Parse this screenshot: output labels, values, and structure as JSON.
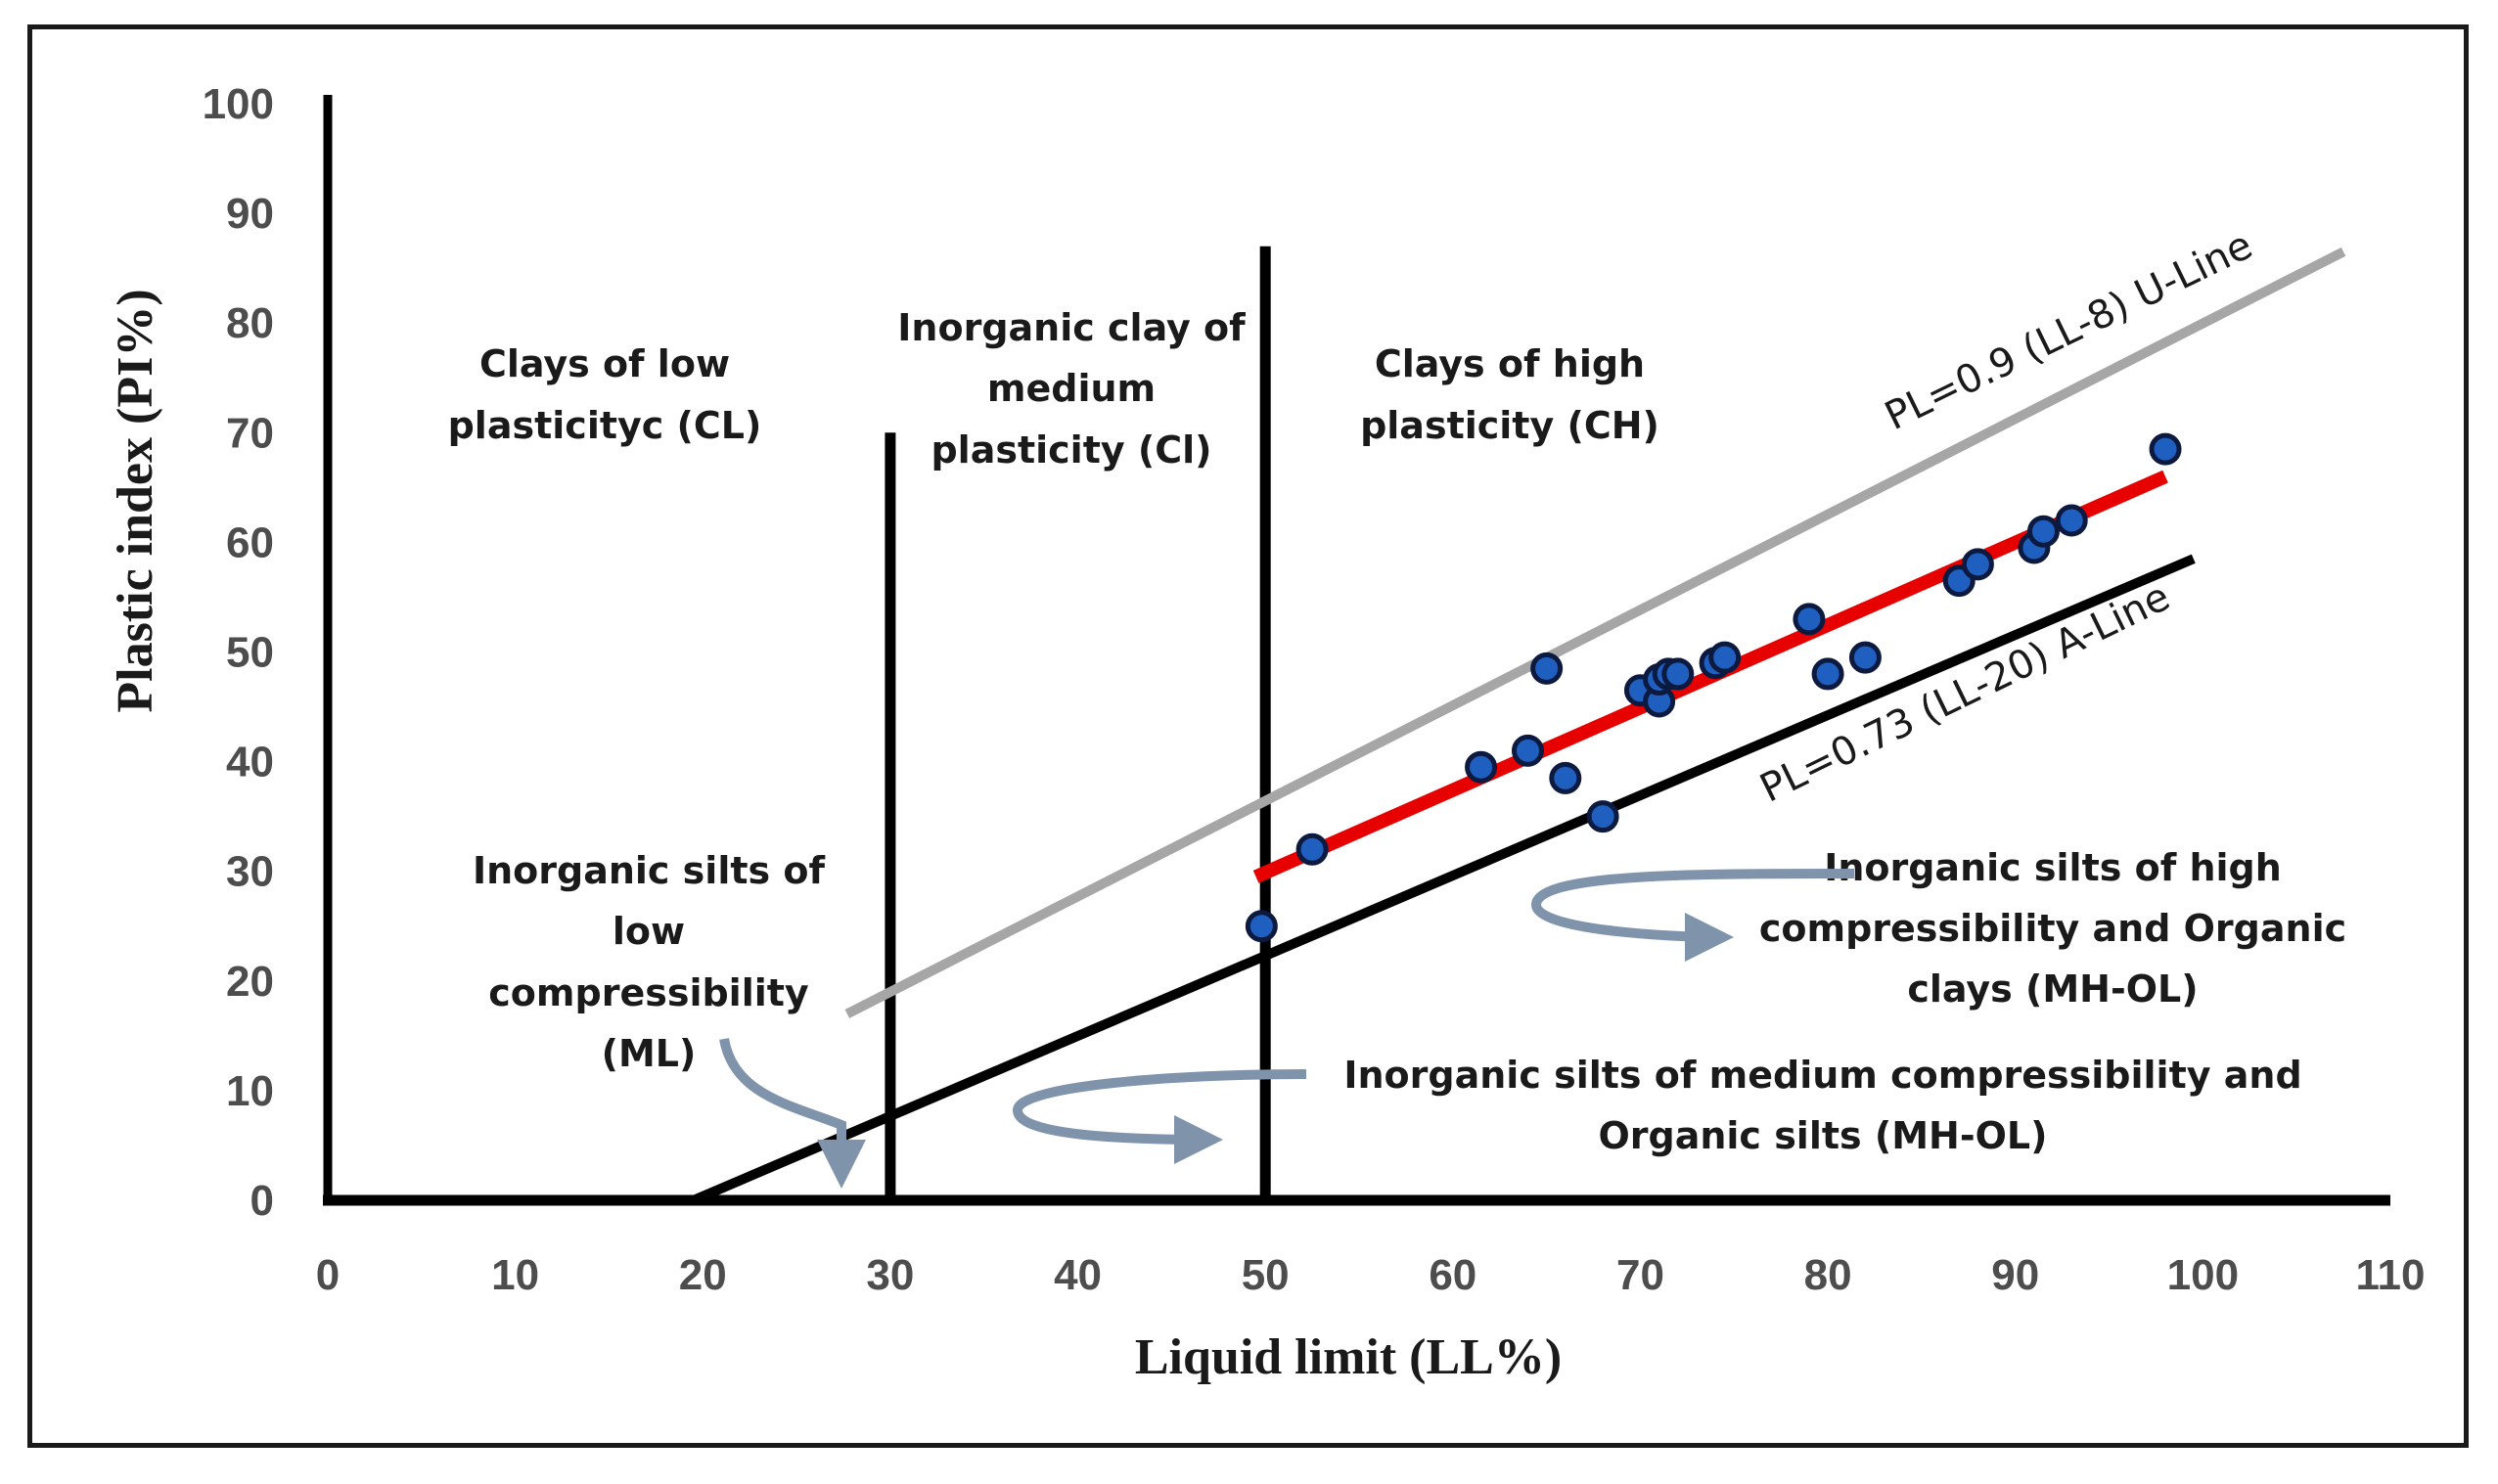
{
  "chart_data": {
    "type": "scatter",
    "title": "",
    "xlabel": "Liquid limit (LL%)",
    "ylabel": "Plastic index (PI%)",
    "xlim": [
      0,
      110
    ],
    "ylim": [
      0,
      100
    ],
    "x_ticks": [
      "0",
      "10",
      "20",
      "30",
      "40",
      "50",
      "60",
      "70",
      "80",
      "90",
      "100",
      "110"
    ],
    "y_ticks": [
      "0",
      "10",
      "20",
      "30",
      "40",
      "50",
      "60",
      "70",
      "80",
      "90",
      "100"
    ],
    "grid": false,
    "boundaries": [
      {
        "name": "LL=30",
        "x": 30,
        "y_range": [
          0,
          70
        ]
      },
      {
        "name": "LL=50",
        "x": 50,
        "y_range": [
          0,
          87
        ]
      }
    ],
    "lines": [
      {
        "name": "U-Line",
        "label": "PL=0.9 (LL-8) U-Line",
        "color": "#a6a6a6",
        "x": [
          27.7,
          107.5
        ],
        "y": [
          17,
          86.5
        ]
      },
      {
        "name": "A-Line",
        "label": "PL=0.73 (LL-20) A-Line",
        "color": "#000000",
        "x": [
          19.5,
          99.5
        ],
        "y": [
          0,
          58.5
        ]
      },
      {
        "name": "Trend",
        "label": "",
        "color": "#e60000",
        "x": [
          49.5,
          98
        ],
        "y": [
          29.5,
          66
        ]
      }
    ],
    "series": [
      {
        "name": "Samples",
        "color": "#1f5fbf",
        "points": [
          {
            "x": 49.8,
            "y": 25
          },
          {
            "x": 52.5,
            "y": 32
          },
          {
            "x": 61.5,
            "y": 39.5
          },
          {
            "x": 64,
            "y": 41
          },
          {
            "x": 65,
            "y": 48.5
          },
          {
            "x": 66,
            "y": 38.5
          },
          {
            "x": 68,
            "y": 35
          },
          {
            "x": 70,
            "y": 46.5
          },
          {
            "x": 71,
            "y": 45.5
          },
          {
            "x": 71,
            "y": 47.5
          },
          {
            "x": 71.5,
            "y": 48
          },
          {
            "x": 72,
            "y": 48
          },
          {
            "x": 74,
            "y": 49
          },
          {
            "x": 74.5,
            "y": 49.5
          },
          {
            "x": 79,
            "y": 53
          },
          {
            "x": 80,
            "y": 48
          },
          {
            "x": 82,
            "y": 49.5
          },
          {
            "x": 87,
            "y": 56.5
          },
          {
            "x": 88,
            "y": 58
          },
          {
            "x": 91,
            "y": 59.5
          },
          {
            "x": 91.5,
            "y": 61
          },
          {
            "x": 93,
            "y": 62
          },
          {
            "x": 98,
            "y": 68.5
          }
        ]
      }
    ],
    "zone_labels": {
      "cl": [
        "Clays of low",
        "plasticityc (CL)"
      ],
      "ci": [
        "Inorganic clay of",
        "medium",
        "plasticity (Cl)"
      ],
      "ch": [
        "Clays of high",
        "plasticity (CH)"
      ],
      "ml": [
        "Inorganic silts of",
        "low",
        "compressibility",
        "(ML)"
      ],
      "mh_ol_high": [
        "Inorganic silts of high",
        "compressibility and Organic",
        "clays (MH-OL)"
      ],
      "mh_ol_medium": [
        "Inorganic silts of medium compressibility and",
        "Organic silts (MH-OL)"
      ]
    },
    "arrow_color": "#7f93ab"
  }
}
